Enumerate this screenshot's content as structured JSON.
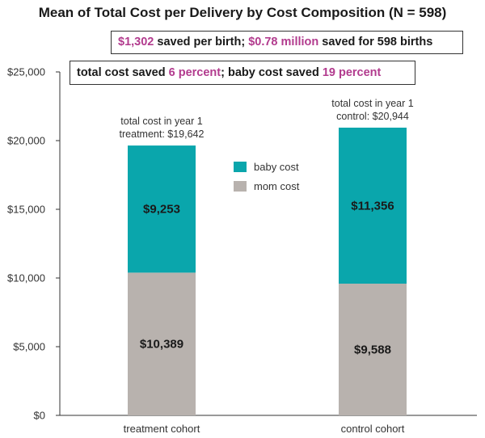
{
  "chart_data": {
    "type": "bar",
    "stacked": true,
    "title": "Mean of Total Cost per Delivery by Cost Composition (N = 598)",
    "categories": [
      "treatment cohort",
      "control cohort"
    ],
    "series": [
      {
        "name": "mom cost",
        "values": [
          10389,
          9588
        ],
        "labels": [
          "$10,389",
          "$9,588"
        ],
        "color": "#b8b2ae"
      },
      {
        "name": "baby cost",
        "values": [
          9253,
          11356
        ],
        "labels": [
          "$9,253",
          "$11,356"
        ],
        "color": "#0aa6ac"
      }
    ],
    "yticks": [
      "$0",
      "$5,000",
      "$10,000",
      "$15,000",
      "$20,000",
      "$25,000"
    ],
    "ylim": [
      0,
      25000
    ],
    "grid": false,
    "legend_position": "center-top",
    "annotations": [
      {
        "line1": "total cost in year 1",
        "line2": "treatment: $19,642"
      },
      {
        "line1": "total cost in year 1",
        "line2": "control: $20,944"
      }
    ]
  },
  "callouts": {
    "c1": {
      "a": "$1,302",
      "b": " saved per birth; ",
      "c": "$0.78 million",
      "d": " saved for 598 births"
    },
    "c2": {
      "a": "total cost saved ",
      "b": "6 percent",
      "c": "; baby cost saved ",
      "d": "19 percent"
    }
  },
  "colors": {
    "highlight": "#b23b8e",
    "baby": "#0aa6ac",
    "mom": "#b8b2ae"
  }
}
